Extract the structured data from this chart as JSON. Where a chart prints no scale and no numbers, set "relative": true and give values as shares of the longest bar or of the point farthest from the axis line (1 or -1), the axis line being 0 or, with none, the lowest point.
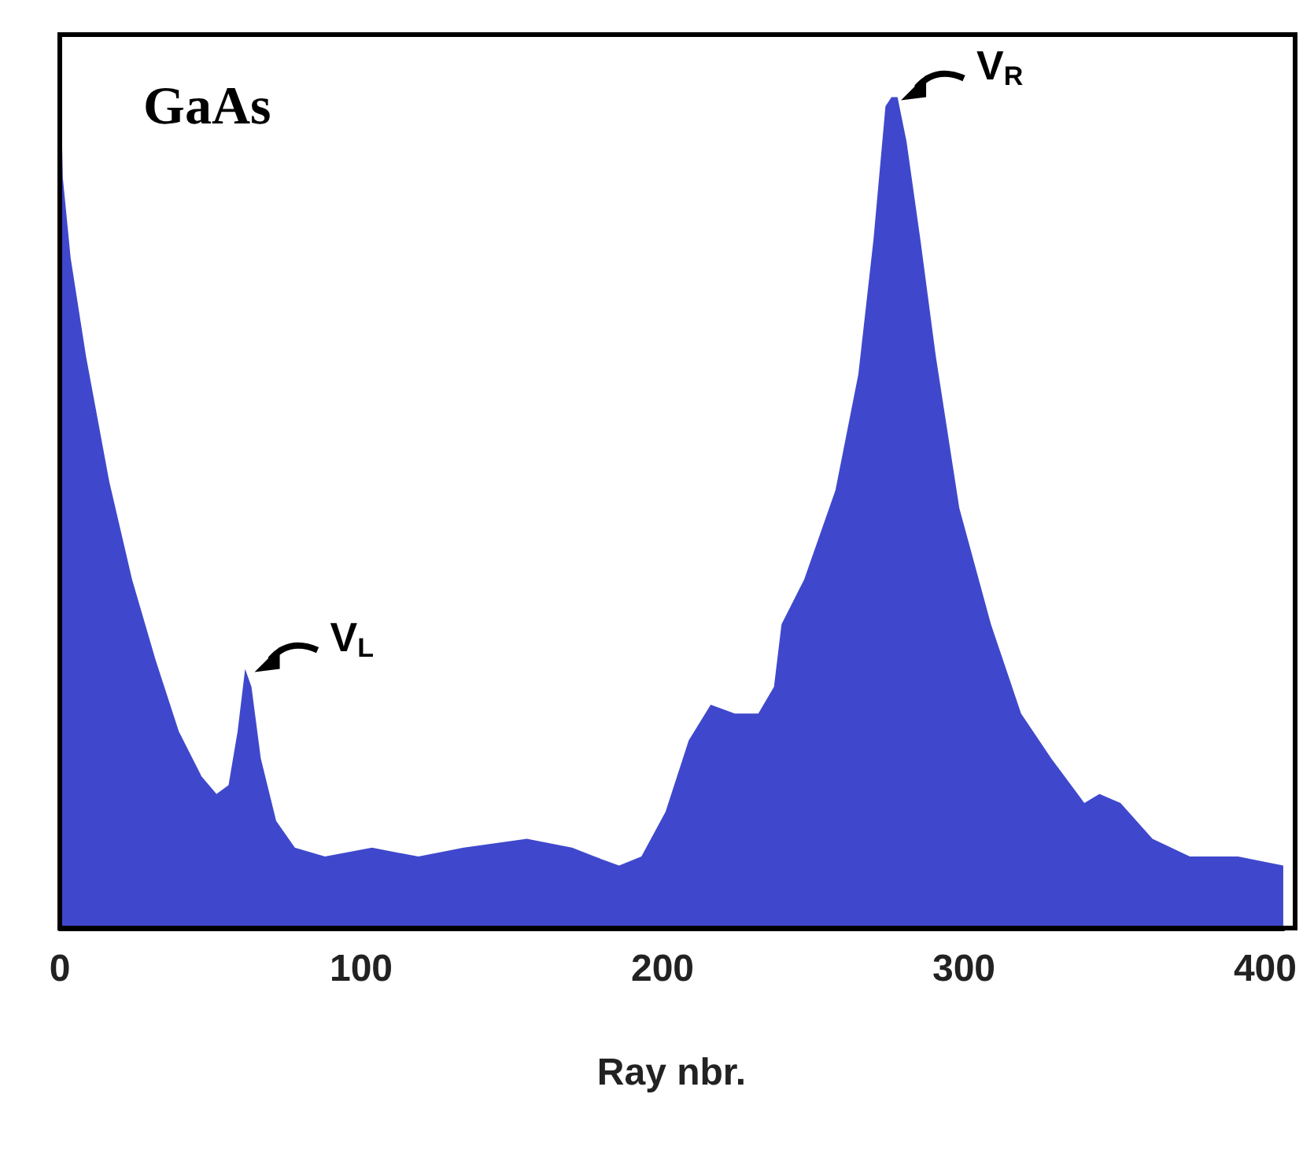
{
  "chart_data": {
    "type": "area",
    "title": "GaAs",
    "xlabel": "Ray nbr.",
    "relative": true,
    "xlim": [
      0,
      406
    ],
    "xticks": [
      0,
      100,
      200,
      300,
      400
    ],
    "grid": false,
    "x": [
      0,
      1,
      3.6,
      8.7,
      16.4,
      24,
      31.8,
      39.5,
      47,
      52,
      56,
      59,
      61.5,
      63.6,
      66.7,
      71.8,
      78,
      88,
      103.6,
      119,
      134,
      155,
      170,
      177.5,
      185.6,
      193,
      201,
      208.7,
      216,
      224,
      231.8,
      237,
      239.5,
      247,
      257.4,
      265,
      270,
      274,
      276,
      278,
      281,
      285.6,
      290.7,
      298.5,
      309,
      319,
      329,
      340,
      345,
      352,
      362.6,
      375,
      391,
      406
    ],
    "series": [
      {
        "color": "#3f48cc",
        "values": [
          1.0,
          0.84,
          0.75,
          0.64,
          0.5,
          0.39,
          0.3,
          0.22,
          0.17,
          0.15,
          0.16,
          0.22,
          0.29,
          0.27,
          0.19,
          0.12,
          0.09,
          0.08,
          0.09,
          0.08,
          0.09,
          0.1,
          0.09,
          0.08,
          0.07,
          0.08,
          0.13,
          0.21,
          0.25,
          0.24,
          0.24,
          0.27,
          0.34,
          0.39,
          0.49,
          0.62,
          0.77,
          0.92,
          0.93,
          0.93,
          0.88,
          0.77,
          0.64,
          0.47,
          0.34,
          0.24,
          0.19,
          0.14,
          0.15,
          0.14,
          0.1,
          0.08,
          0.08,
          0.07
        ]
      }
    ],
    "annotations": [
      {
        "text": "V$_{L}$",
        "x": 61.5,
        "y": 0.29
      },
      {
        "text": "V$_{R}$",
        "x": 276,
        "y": 0.93
      }
    ]
  }
}
